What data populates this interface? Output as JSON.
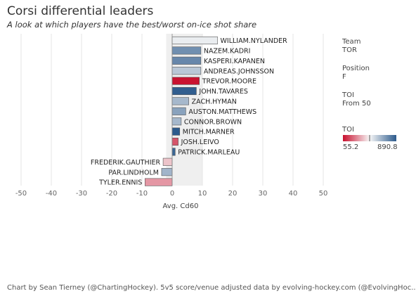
{
  "header": {
    "title": "Corsi differential leaders",
    "subtitle": "A look at which players have the best/worst on-ice shot share"
  },
  "sidebar": {
    "team_label": "Team",
    "team_value": "TOR",
    "position_label": "Position",
    "position_value": "F",
    "toi_label": "TOI",
    "toi_value": "From 50",
    "legend_title": "TOI",
    "legend_min": "55.2",
    "legend_max": "890.8"
  },
  "colors": {
    "low": "#c8102e",
    "mid": "#f7f7f7",
    "high": "#2c5a8c"
  },
  "chart_data": {
    "type": "bar",
    "orientation": "horizontal",
    "xlabel": "Avg. Cd60",
    "xlim": [
      -55,
      55
    ],
    "xticks": [
      -50,
      -40,
      -30,
      -20,
      -10,
      0,
      10,
      20,
      30,
      40,
      50
    ],
    "shaded_range": [
      -2,
      10
    ],
    "grid": true,
    "players": [
      {
        "name": "WILLIAM.NYLANDER",
        "value": 15,
        "toi": 500
      },
      {
        "name": "NAZEM.KADRI",
        "value": 9.5,
        "toi": 750
      },
      {
        "name": "KASPERI.KAPANEN",
        "value": 9.5,
        "toi": 770
      },
      {
        "name": "ANDREAS.JOHNSSON",
        "value": 9.5,
        "toi": 600
      },
      {
        "name": "TREVOR.MOORE",
        "value": 9,
        "toi": 60
      },
      {
        "name": "JOHN.TAVARES",
        "value": 8,
        "toi": 880
      },
      {
        "name": "ZACH.HYMAN",
        "value": 5.5,
        "toi": 640
      },
      {
        "name": "AUSTON.MATTHEWS",
        "value": 4.5,
        "toi": 700
      },
      {
        "name": "CONNOR.BROWN",
        "value": 3,
        "toi": 640
      },
      {
        "name": "MITCH.MARNER",
        "value": 2.5,
        "toi": 890
      },
      {
        "name": "JOSH.LEIVO",
        "value": 2,
        "toi": 180
      },
      {
        "name": "PATRICK.MARLEAU",
        "value": 1,
        "toi": 860
      },
      {
        "name": "FREDERIK.GAUTHIER",
        "value": -3,
        "toi": 380
      },
      {
        "name": "PAR.LINDHOLM",
        "value": -3.5,
        "toi": 650
      },
      {
        "name": "TYLER.ENNIS",
        "value": -9,
        "toi": 300
      }
    ],
    "toi_range": [
      55.2,
      890.8
    ]
  },
  "footer": {
    "credit": "Chart by Sean Tierney (@ChartingHockey). 5v5 score/venue adjusted data by evolving-hockey.com (@EvolvingHoc.."
  }
}
